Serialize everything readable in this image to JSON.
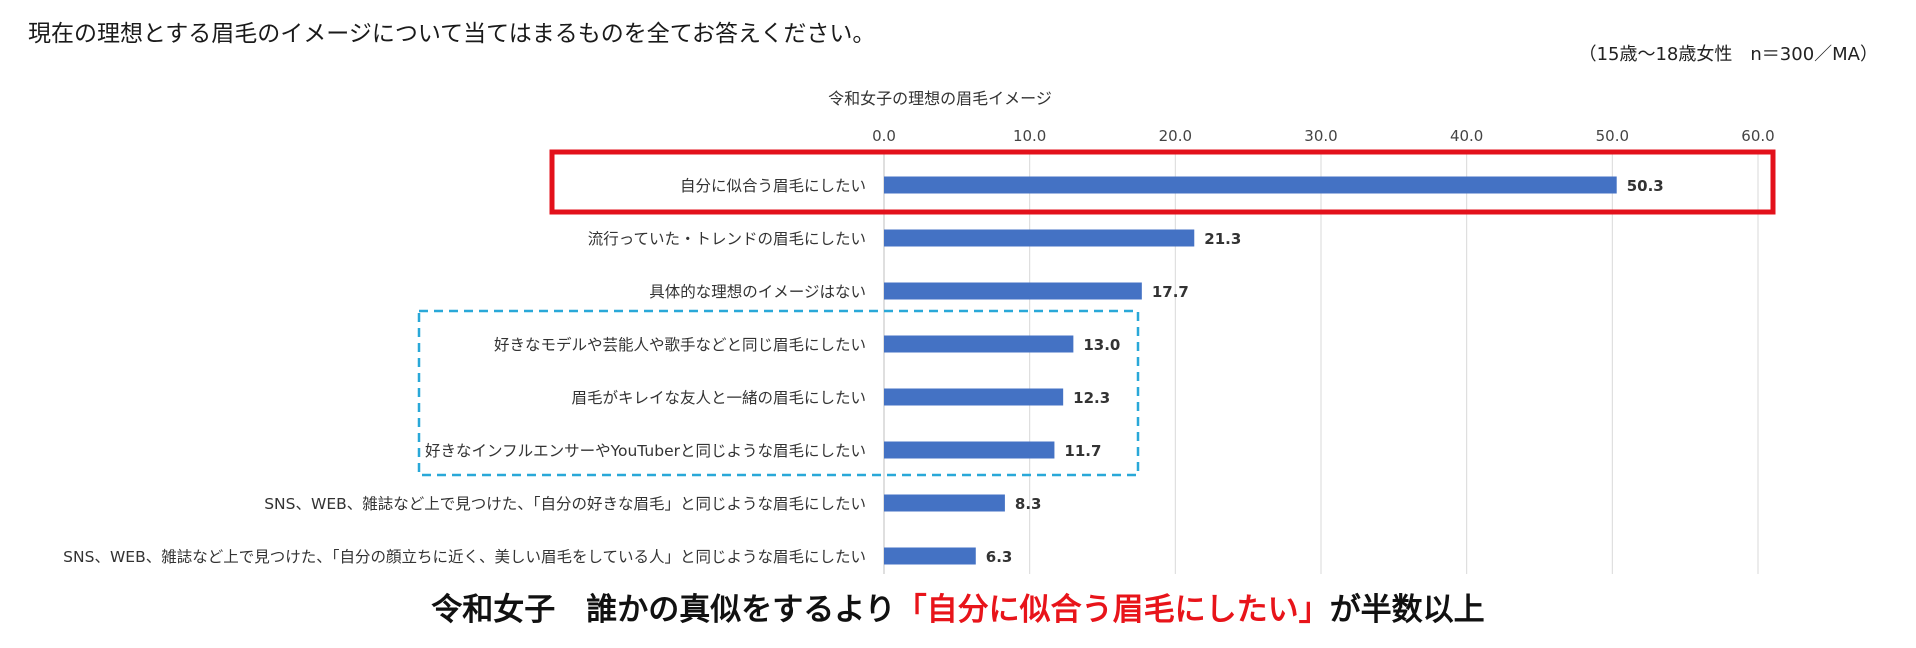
{
  "question": "現在の理想とする眉毛のイメージについて当てはまるものを全てお答えください。",
  "sample_note": "（15歳～18歳女性　n＝300／MA）",
  "headline": {
    "prefix": "令和女子　誰かの真似をするより",
    "highlight": "「自分に似合う眉毛にしたい」",
    "suffix": "が半数以上"
  },
  "colors": {
    "bar": "#4472c4",
    "highlight_box": "#e3111b",
    "dashed_box": "#29a8d8",
    "headline_highlight": "#e8141a",
    "grid": "#d9d9d9"
  },
  "chart_data": {
    "type": "bar",
    "orientation": "horizontal",
    "title": "令和女子の理想の眉毛イメージ",
    "xlim": [
      0,
      60
    ],
    "ticks": [
      "0.0",
      "10.0",
      "20.0",
      "30.0",
      "40.0",
      "50.0",
      "60.0"
    ],
    "tick_values": [
      0,
      10,
      20,
      30,
      40,
      50,
      60
    ],
    "categories": [
      "自分に似合う眉毛にしたい",
      "流行っていた・トレンドの眉毛にしたい",
      "具体的な理想のイメージはない",
      "好きなモデルや芸能人や歌手などと同じ眉毛にしたい",
      "眉毛がキレイな友人と一緒の眉毛にしたい",
      "好きなインフルエンサーやYouTuberと同じような眉毛にしたい",
      "SNS、WEB、雑誌など上で見つけた、「自分の好きな眉毛」と同じような眉毛にしたい",
      "SNS、WEB、雑誌など上で見つけた、「自分の顔立ちに近く、美しい眉毛をしている人」と同じような眉毛にしたい"
    ],
    "values": [
      50.3,
      21.3,
      17.7,
      13.0,
      12.3,
      11.7,
      8.3,
      6.3
    ],
    "labels": [
      "50.3",
      "21.3",
      "17.7",
      "13.0",
      "12.3",
      "11.7",
      "8.3",
      "6.3"
    ],
    "highlighted_index": 0,
    "dashed_group_indices": [
      3,
      4,
      5
    ],
    "grid": true
  }
}
